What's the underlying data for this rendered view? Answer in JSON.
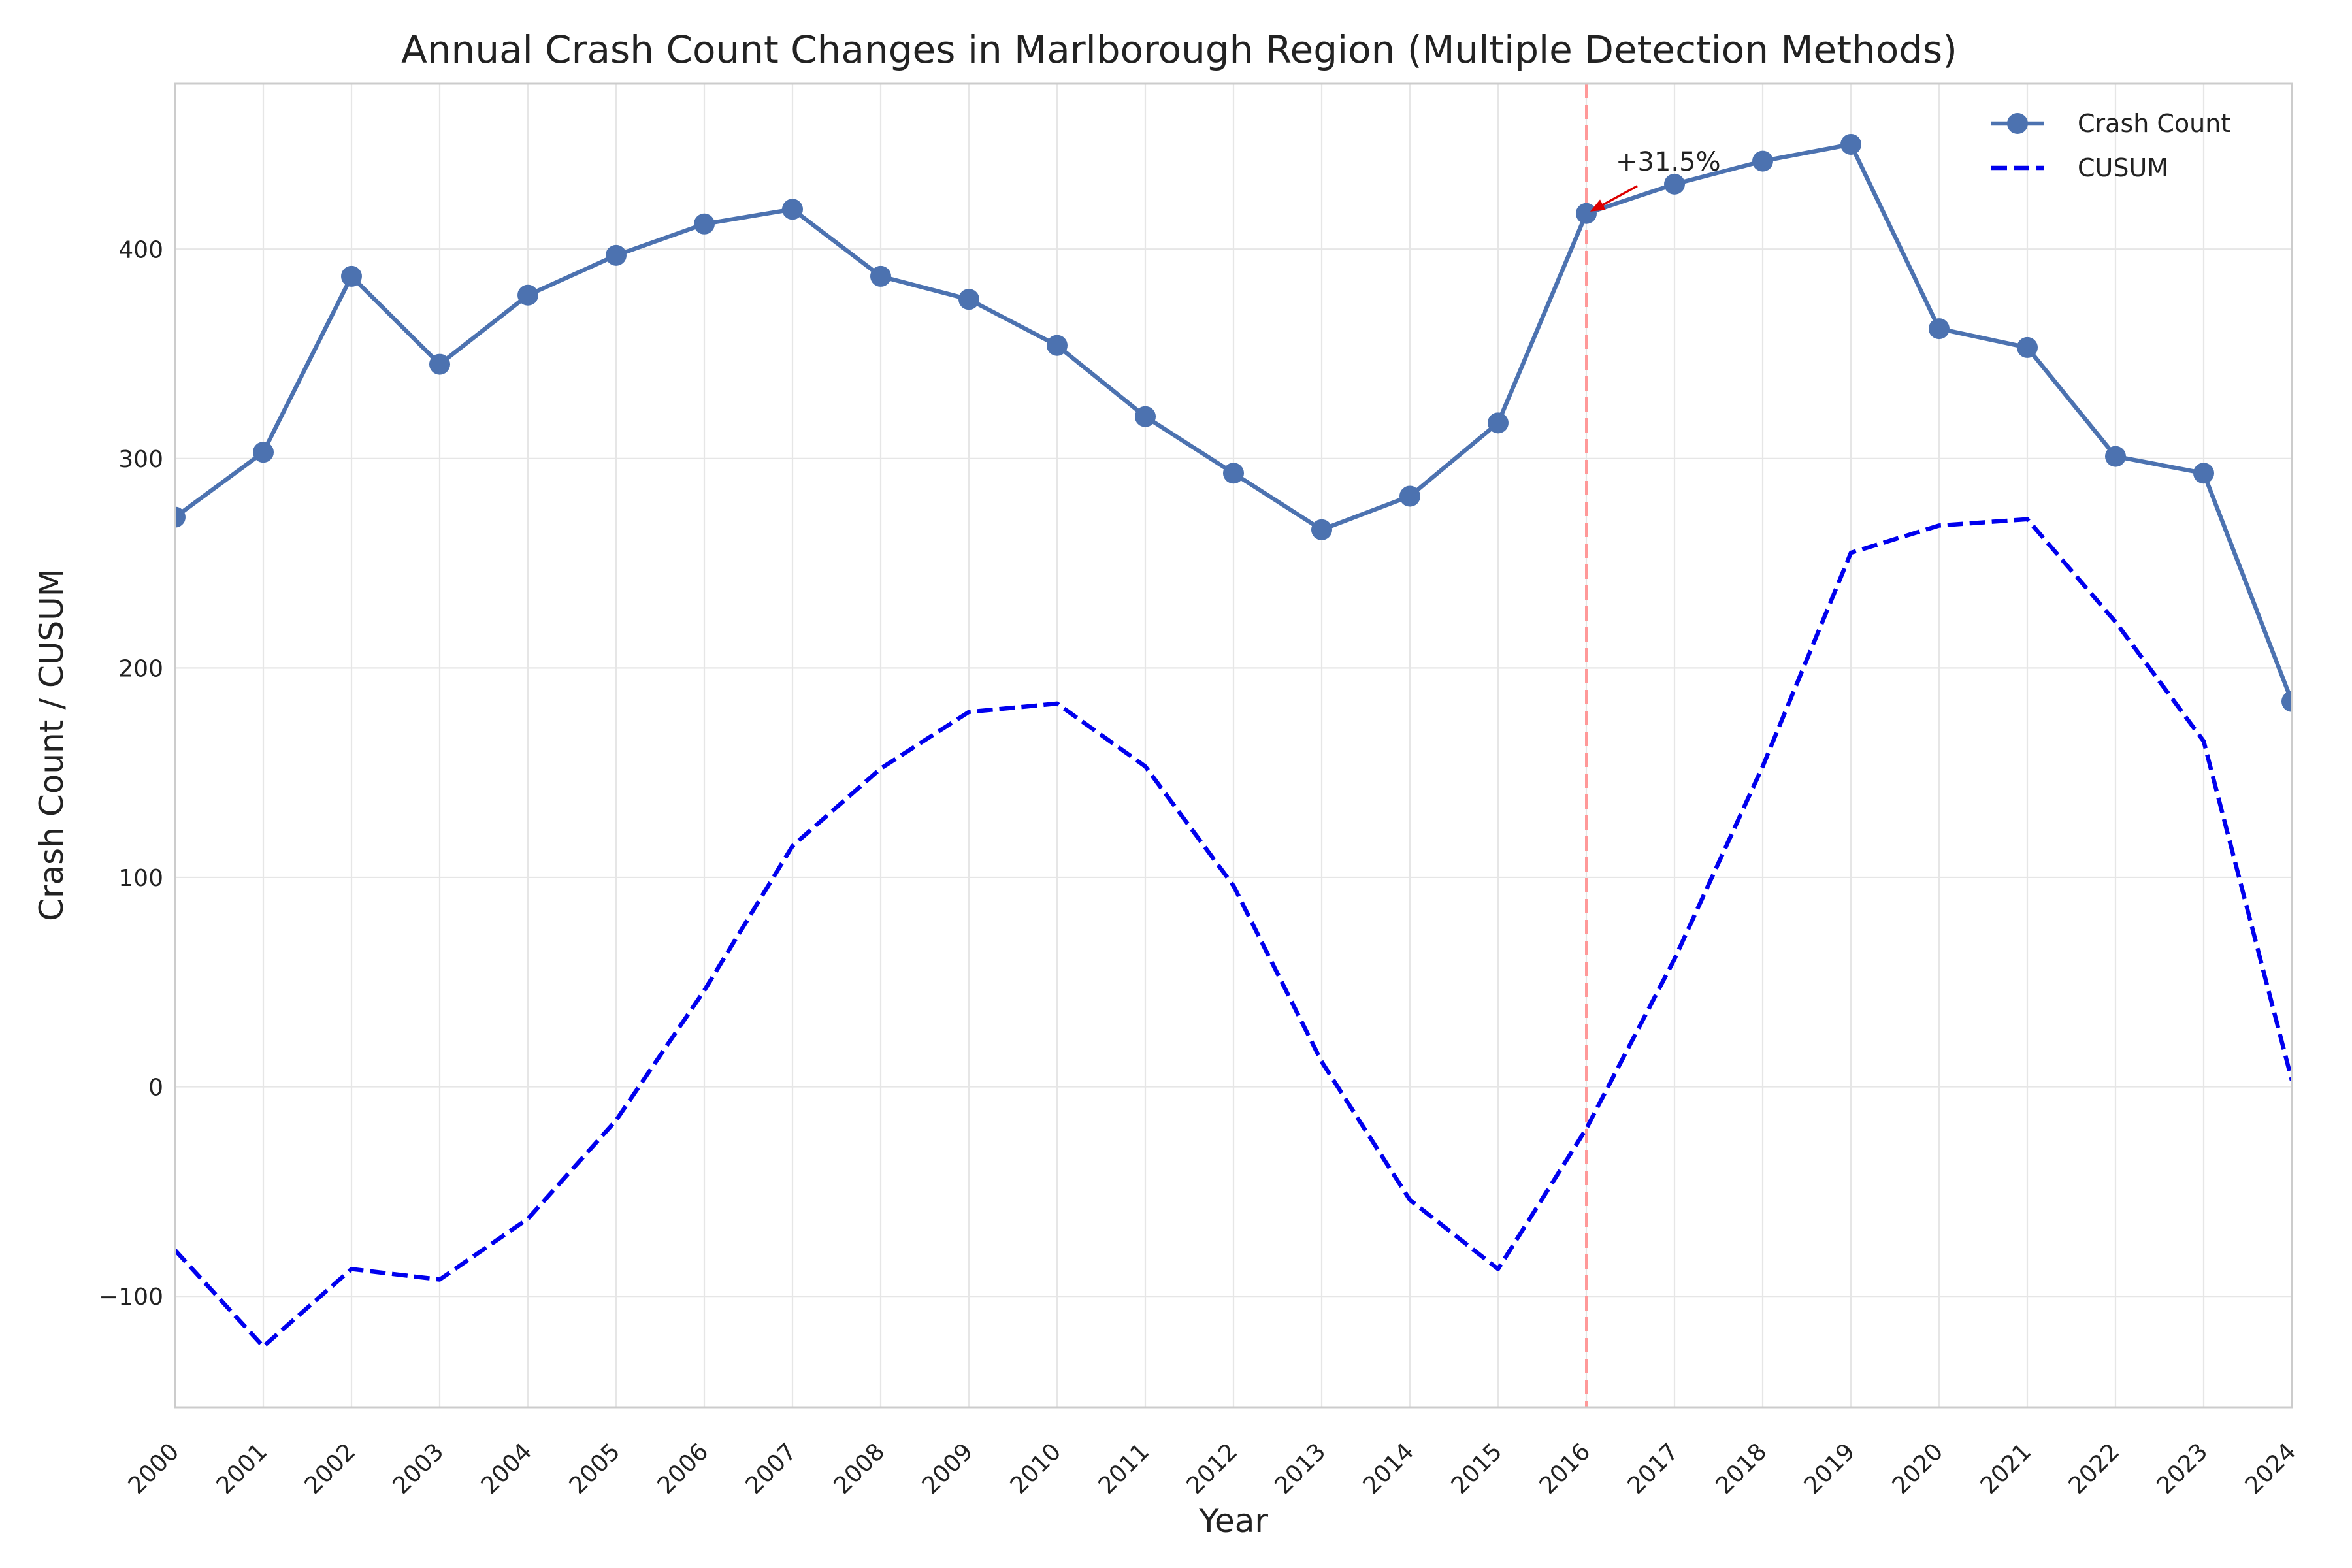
{
  "chart_data": {
    "type": "line",
    "title": "Annual Crash Count Changes in Marlborough Region (Multiple Detection Methods)",
    "xlabel": "Year",
    "ylabel": "Crash Count / CUSUM",
    "x": [
      2000,
      2001,
      2002,
      2003,
      2004,
      2005,
      2006,
      2007,
      2008,
      2009,
      2010,
      2011,
      2012,
      2013,
      2014,
      2015,
      2016,
      2017,
      2018,
      2019,
      2020,
      2021,
      2022,
      2023,
      2024
    ],
    "xlim": [
      2000,
      2024
    ],
    "ylim": [
      -153,
      479
    ],
    "yticks": [
      -100,
      0,
      100,
      200,
      300,
      400
    ],
    "ytick_labels": [
      "−100",
      "0",
      "100",
      "200",
      "300",
      "400"
    ],
    "grid": true,
    "legend_position": "top-right",
    "series": [
      {
        "name": "Crash Count",
        "style": "solid-with-markers",
        "color": "#4c72b0",
        "values": [
          272,
          303,
          387,
          345,
          378,
          397,
          412,
          419,
          387,
          376,
          354,
          320,
          293,
          266,
          282,
          317,
          417,
          431,
          442,
          450,
          362,
          353,
          301,
          293,
          184
        ]
      },
      {
        "name": "CUSUM",
        "style": "dashed",
        "color": "#0000ee",
        "values": [
          -78,
          -124,
          -87,
          -92,
          -63,
          -16,
          46,
          115,
          152,
          179,
          183,
          153,
          96,
          12,
          -54,
          -87,
          -20,
          61,
          153,
          255,
          268,
          271,
          222,
          165,
          3
        ]
      }
    ],
    "change_point": {
      "x": 2016,
      "color": "#ff9999"
    },
    "annotation": {
      "text": "+31.5%",
      "x": 2016,
      "y": 417,
      "arrow_color": "#dd0000"
    }
  }
}
